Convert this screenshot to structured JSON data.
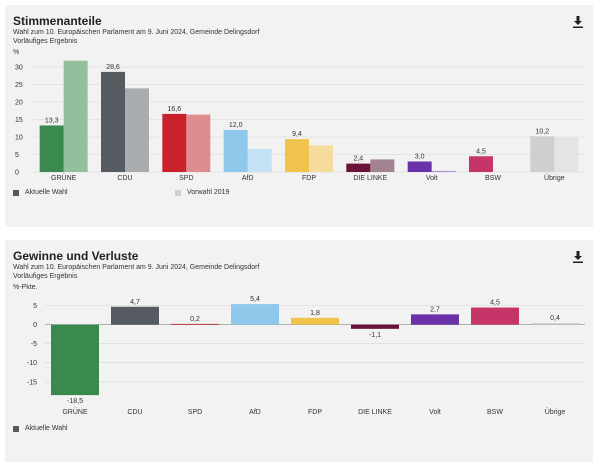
{
  "chart_data": [
    {
      "type": "bar",
      "title": "Stimmenanteile",
      "subtitle": "Wahl zum 10. Europäischen Parlament am 9. Juni 2024, Gemeinde Delingsdorf",
      "subtitle2": "Vorläufiges Ergebnis",
      "ylabel": "%",
      "ylim": [
        0,
        32
      ],
      "yticks": [
        0,
        5,
        10,
        15,
        20,
        25,
        30
      ],
      "grid": true,
      "legend_position": "bottom-left",
      "categories": [
        "GRÜNE",
        "CDU",
        "SPD",
        "AfD",
        "FDP",
        "DIE LINKE",
        "Volt",
        "BSW",
        "Übrige"
      ],
      "series": [
        {
          "name": "Aktuelle Wahl",
          "values": [
            13.3,
            28.6,
            16.6,
            12.0,
            9.4,
            2.4,
            3.0,
            4.5,
            10.2
          ],
          "labels": [
            "13,3",
            "28,6",
            "16,6",
            "12,0",
            "9,4",
            "2,4",
            "3,0",
            "4,5",
            "10,2"
          ]
        },
        {
          "name": "Vorwahl 2019",
          "values": [
            31.8,
            23.9,
            16.4,
            6.6,
            7.6,
            3.6,
            0.3,
            null,
            9.9
          ]
        }
      ],
      "colors": [
        "#3a8a4f",
        "#555b60",
        "#c9222a",
        "#8fc8ea",
        "#f0c44c",
        "#6b1238",
        "#6a31a8",
        "#c6356a",
        "#cfcfcf"
      ],
      "colors_prev": [
        "#92bf9e",
        "#a9acae",
        "#df8c8f",
        "#c4e1f5",
        "#f5dc9c",
        "#a38392",
        "#a98cd0",
        "#e6a0b8",
        "#e4e4e4"
      ]
    },
    {
      "type": "bar",
      "title": "Gewinne und Verluste",
      "subtitle": "Wahl zum 10. Europäischen Parlament am 9. Juni 2024, Gemeinde Delingsdorf",
      "subtitle2": "Vorläufiges Ergebnis",
      "ylabel": "%-Pkte.",
      "ylim": [
        -19,
        7
      ],
      "yticks": [
        5,
        0,
        -5,
        -10,
        -15
      ],
      "grid": true,
      "legend_position": "bottom-left",
      "categories": [
        "GRÜNE",
        "CDU",
        "SPD",
        "AfD",
        "FDP",
        "DIE LINKE",
        "Volt",
        "BSW",
        "Übrige"
      ],
      "series": [
        {
          "name": "Aktuelle Wahl",
          "values": [
            -18.5,
            4.7,
            0.2,
            5.4,
            1.8,
            -1.1,
            2.7,
            4.5,
            0.4
          ],
          "labels": [
            "-18,5",
            "4,7",
            "0,2",
            "5,4",
            "1,8",
            "-1,1",
            "2,7",
            "4,5",
            "0,4"
          ]
        }
      ],
      "colors": [
        "#3a8a4f",
        "#555b60",
        "#c9222a",
        "#8fc8ea",
        "#f0c44c",
        "#6b1238",
        "#6a31a8",
        "#c6356a",
        "#cfcfcf"
      ]
    }
  ],
  "legend_colors": {
    "current": "#555b60",
    "previous": "#d0d0d0"
  }
}
